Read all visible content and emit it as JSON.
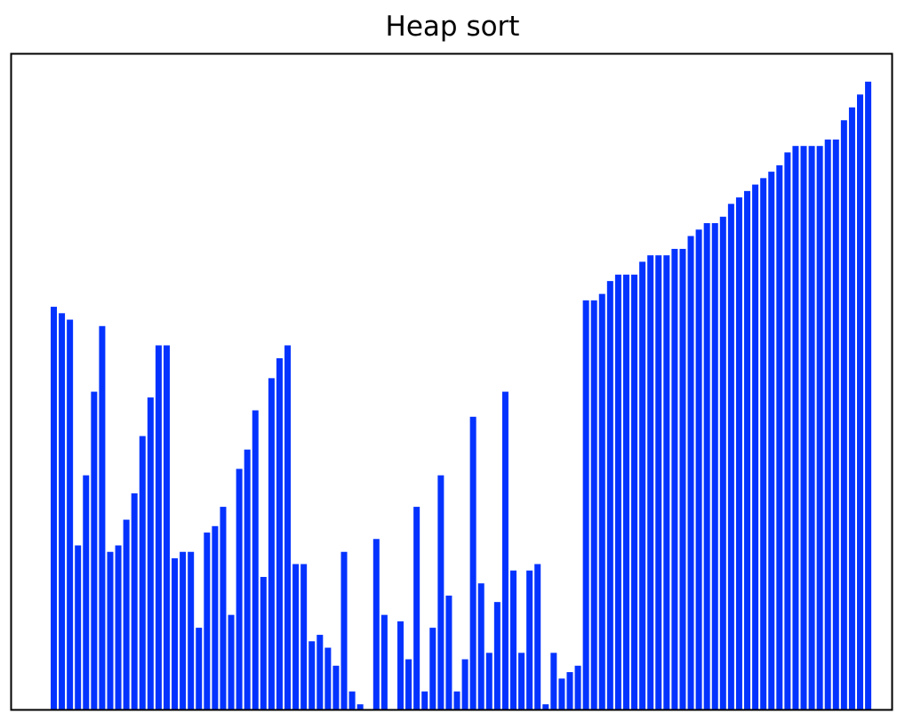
{
  "chart_data": {
    "type": "bar",
    "title": "Heap sort",
    "xlabel": "",
    "ylabel": "",
    "grid": false,
    "axes_visible": false,
    "legend": "none",
    "bar_color": "#0433ff",
    "frame_color": "#000000",
    "ylim": [
      0,
      102
    ],
    "values": [
      62.6,
      61.6,
      60.6,
      25.5,
      36.4,
      49.4,
      59.6,
      24.5,
      25.5,
      29.5,
      33.6,
      42.5,
      48.5,
      56.6,
      56.6,
      23.5,
      24.5,
      24.5,
      12.7,
      27.5,
      28.5,
      31.5,
      14.7,
      37.4,
      40.4,
      46.5,
      20.6,
      51.5,
      54.6,
      56.6,
      22.6,
      22.6,
      10.6,
      11.6,
      9.6,
      6.8,
      24.5,
      2.8,
      0.8,
      0.0,
      26.5,
      14.7,
      0.0,
      13.7,
      7.8,
      31.5,
      2.8,
      12.7,
      36.4,
      17.7,
      2.8,
      7.8,
      45.5,
      19.6,
      8.8,
      16.7,
      49.4,
      21.6,
      8.8,
      21.6,
      22.6,
      0.8,
      8.8,
      4.8,
      5.8,
      6.8,
      63.6,
      63.6,
      64.6,
      66.6,
      67.6,
      67.6,
      67.6,
      69.6,
      70.6,
      70.6,
      70.6,
      71.6,
      71.6,
      73.6,
      74.6,
      75.6,
      75.6,
      76.6,
      78.6,
      79.6,
      80.6,
      81.6,
      82.6,
      83.6,
      84.6,
      86.6,
      87.6,
      87.6,
      87.6,
      87.6,
      88.6,
      88.6,
      91.6,
      93.6,
      95.6,
      97.6
    ]
  }
}
